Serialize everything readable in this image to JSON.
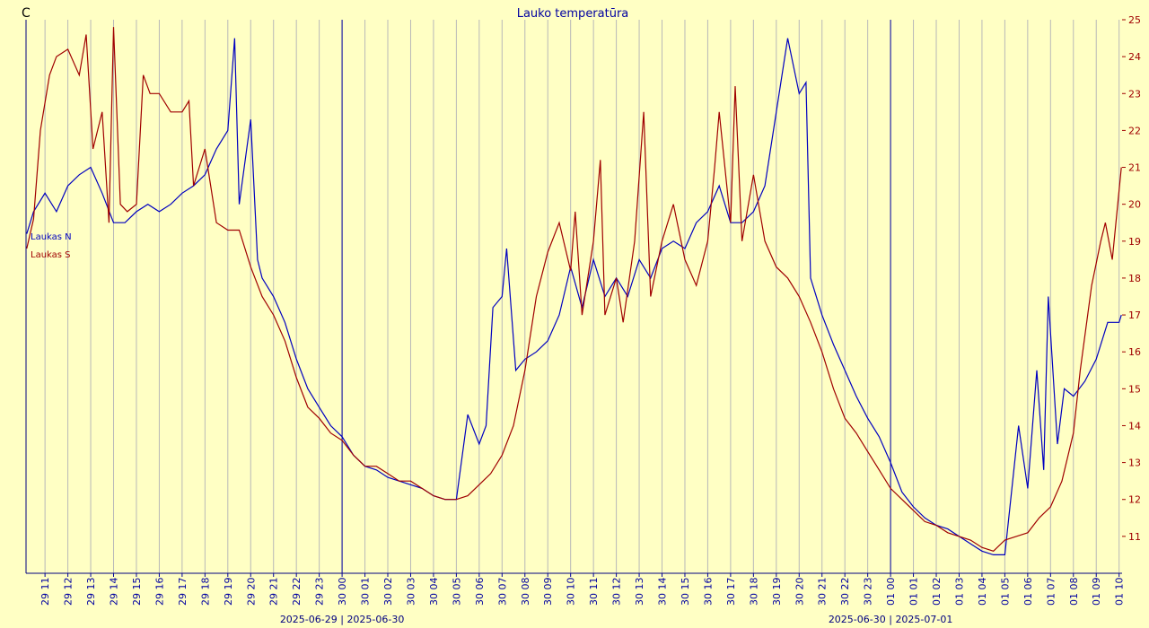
{
  "chart_data": {
    "type": "line",
    "title": "Lauko temperatūra",
    "unit_label": "C",
    "xlim": [
      10.17,
      58.13
    ],
    "ylim": [
      10,
      25
    ],
    "yticks": [
      11,
      12,
      13,
      14,
      15,
      16,
      17,
      18,
      19,
      20,
      21,
      22,
      23,
      24,
      25
    ],
    "xticks": [
      {
        "value": 11,
        "label": "29 11"
      },
      {
        "value": 12,
        "label": "29 12"
      },
      {
        "value": 13,
        "label": "29 13"
      },
      {
        "value": 14,
        "label": "29 14"
      },
      {
        "value": 15,
        "label": "29 15"
      },
      {
        "value": 16,
        "label": "29 16"
      },
      {
        "value": 17,
        "label": "29 17"
      },
      {
        "value": 18,
        "label": "29 18"
      },
      {
        "value": 19,
        "label": "29 19"
      },
      {
        "value": 20,
        "label": "29 20"
      },
      {
        "value": 21,
        "label": "29 21"
      },
      {
        "value": 22,
        "label": "29 22"
      },
      {
        "value": 23,
        "label": "29 23"
      },
      {
        "value": 24,
        "label": "30 00"
      },
      {
        "value": 25,
        "label": "30 01"
      },
      {
        "value": 26,
        "label": "30 02"
      },
      {
        "value": 27,
        "label": "30 03"
      },
      {
        "value": 28,
        "label": "30 04"
      },
      {
        "value": 29,
        "label": "30 05"
      },
      {
        "value": 30,
        "label": "30 06"
      },
      {
        "value": 31,
        "label": "30 07"
      },
      {
        "value": 32,
        "label": "30 08"
      },
      {
        "value": 33,
        "label": "30 09"
      },
      {
        "value": 34,
        "label": "30 10"
      },
      {
        "value": 35,
        "label": "30 11"
      },
      {
        "value": 36,
        "label": "30 12"
      },
      {
        "value": 37,
        "label": "30 13"
      },
      {
        "value": 38,
        "label": "30 14"
      },
      {
        "value": 39,
        "label": "30 15"
      },
      {
        "value": 40,
        "label": "30 16"
      },
      {
        "value": 41,
        "label": "30 17"
      },
      {
        "value": 42,
        "label": "30 18"
      },
      {
        "value": 43,
        "label": "30 19"
      },
      {
        "value": 44,
        "label": "30 20"
      },
      {
        "value": 45,
        "label": "30 21"
      },
      {
        "value": 46,
        "label": "30 22"
      },
      {
        "value": 47,
        "label": "30 23"
      },
      {
        "value": 48,
        "label": "01 00"
      },
      {
        "value": 49,
        "label": "01 01"
      },
      {
        "value": 50,
        "label": "01 02"
      },
      {
        "value": 51,
        "label": "01 03"
      },
      {
        "value": 52,
        "label": "01 04"
      },
      {
        "value": 53,
        "label": "01 05"
      },
      {
        "value": 54,
        "label": "01 06"
      },
      {
        "value": 55,
        "label": "01 07"
      },
      {
        "value": 56,
        "label": "01 08"
      },
      {
        "value": 57,
        "label": "01 09"
      },
      {
        "value": 58,
        "label": "01 10"
      }
    ],
    "day_lines": [
      {
        "value": 24,
        "label": "2025-06-29 | 2025-06-30"
      },
      {
        "value": 48,
        "label": "2025-06-30 | 2025-07-01"
      }
    ],
    "grid": true,
    "series": [
      {
        "name": "Laukas N",
        "color": "#0000c0",
        "x": [
          10.2,
          10.5,
          11,
          11.5,
          12,
          12.5,
          13,
          13.5,
          14,
          14.5,
          15,
          15.5,
          16,
          16.5,
          17,
          17.5,
          18,
          18.5,
          19,
          19.3,
          19.5,
          20,
          20.3,
          20.5,
          21,
          21.5,
          22,
          22.5,
          23,
          23.5,
          24,
          24.5,
          25,
          25.5,
          26,
          26.5,
          27,
          27.5,
          28,
          28.5,
          29,
          29.5,
          30,
          30.3,
          30.6,
          31,
          31.2,
          31.6,
          32,
          32.5,
          33,
          33.5,
          34,
          34.5,
          35,
          35.5,
          36,
          36.5,
          37,
          37.5,
          38,
          38.5,
          39,
          39.5,
          40,
          40.5,
          41,
          41.5,
          42,
          42.5,
          43,
          43.5,
          44,
          44.3,
          44.5,
          45,
          45.5,
          46,
          46.5,
          47,
          47.5,
          48,
          48.5,
          49,
          49.5,
          50,
          50.5,
          51,
          51.5,
          52,
          52.5,
          53,
          53.6,
          54,
          54.4,
          54.7,
          54.9,
          55.3,
          55.6,
          56,
          56.5,
          57,
          57.5,
          58,
          58.1
        ],
        "values": [
          19.2,
          19.8,
          20.3,
          19.8,
          20.5,
          20.8,
          21.0,
          20.3,
          19.5,
          19.5,
          19.8,
          20.0,
          19.8,
          20.0,
          20.3,
          20.5,
          20.8,
          21.5,
          22.0,
          24.5,
          20.0,
          22.3,
          18.5,
          18.0,
          17.5,
          16.8,
          15.8,
          15.0,
          14.5,
          14.0,
          13.7,
          13.2,
          12.9,
          12.8,
          12.6,
          12.5,
          12.4,
          12.3,
          12.1,
          12.0,
          12.0,
          14.3,
          13.5,
          14.0,
          17.2,
          17.5,
          18.8,
          15.5,
          15.8,
          16.0,
          16.3,
          17.0,
          18.3,
          17.2,
          18.5,
          17.5,
          18.0,
          17.5,
          18.5,
          18.0,
          18.8,
          19.0,
          18.8,
          19.5,
          19.8,
          20.5,
          19.5,
          19.5,
          19.8,
          20.5,
          22.5,
          24.5,
          23.0,
          23.3,
          18.0,
          17.0,
          16.2,
          15.5,
          14.8,
          14.2,
          13.7,
          13.0,
          12.2,
          11.8,
          11.5,
          11.3,
          11.2,
          11.0,
          10.8,
          10.6,
          10.5,
          10.5,
          14.0,
          12.3,
          15.5,
          12.8,
          17.5,
          13.5,
          15.0,
          14.8,
          15.2,
          15.8,
          16.8,
          16.8,
          17.0
        ]
      },
      {
        "name": "Laukas S",
        "color": "#a00000",
        "x": [
          10.2,
          10.5,
          10.8,
          11.2,
          11.5,
          12,
          12.5,
          12.8,
          13.1,
          13.5,
          13.8,
          14.0,
          14.3,
          14.6,
          15.0,
          15.3,
          15.6,
          16,
          16.5,
          17,
          17.3,
          17.5,
          18,
          18.5,
          19,
          19.5,
          20,
          20.5,
          21,
          21.5,
          22,
          22.5,
          23,
          23.5,
          24,
          24.5,
          25,
          25.5,
          26,
          26.5,
          27,
          27.5,
          28,
          28.5,
          29,
          29.5,
          30,
          30.5,
          31,
          31.5,
          32,
          32.5,
          33,
          33.5,
          34,
          34.2,
          34.5,
          35,
          35.3,
          35.5,
          36,
          36.3,
          36.8,
          37.2,
          37.5,
          38,
          38.5,
          39,
          39.5,
          40,
          40.3,
          40.5,
          41,
          41.2,
          41.5,
          42,
          42.5,
          43,
          43.5,
          44,
          44.5,
          45,
          45.5,
          46,
          46.5,
          47,
          47.5,
          48,
          48.5,
          49,
          49.5,
          50,
          50.5,
          51,
          51.5,
          52,
          52.5,
          53,
          53.5,
          54,
          54.5,
          55,
          55.5,
          56,
          56.3,
          56.8,
          57.2,
          57.4,
          57.7,
          58.1
        ],
        "values": [
          18.8,
          19.6,
          22.0,
          23.5,
          24.0,
          24.2,
          23.5,
          24.6,
          21.5,
          22.5,
          19.5,
          24.8,
          20.0,
          19.8,
          20.0,
          23.5,
          23.0,
          23.0,
          22.5,
          22.5,
          22.8,
          20.5,
          21.5,
          19.5,
          19.3,
          19.3,
          18.3,
          17.5,
          17.0,
          16.3,
          15.3,
          14.5,
          14.2,
          13.8,
          13.6,
          13.2,
          12.9,
          12.9,
          12.7,
          12.5,
          12.5,
          12.3,
          12.1,
          12.0,
          12.0,
          12.1,
          12.4,
          12.7,
          13.2,
          14.0,
          15.5,
          17.5,
          18.7,
          19.5,
          18.2,
          19.8,
          17.0,
          19.0,
          21.2,
          17.0,
          18.0,
          16.8,
          19.0,
          22.5,
          17.5,
          19.0,
          20.0,
          18.5,
          17.8,
          19.0,
          21.0,
          22.5,
          19.5,
          23.2,
          19.0,
          20.8,
          19.0,
          18.3,
          18.0,
          17.5,
          16.8,
          16.0,
          15.0,
          14.2,
          13.8,
          13.3,
          12.8,
          12.3,
          12.0,
          11.7,
          11.4,
          11.3,
          11.1,
          11.0,
          10.9,
          10.7,
          10.6,
          10.9,
          11.0,
          11.1,
          11.5,
          11.8,
          12.5,
          13.8,
          15.5,
          17.8,
          19.0,
          19.5,
          18.5,
          21.0
        ]
      }
    ]
  }
}
